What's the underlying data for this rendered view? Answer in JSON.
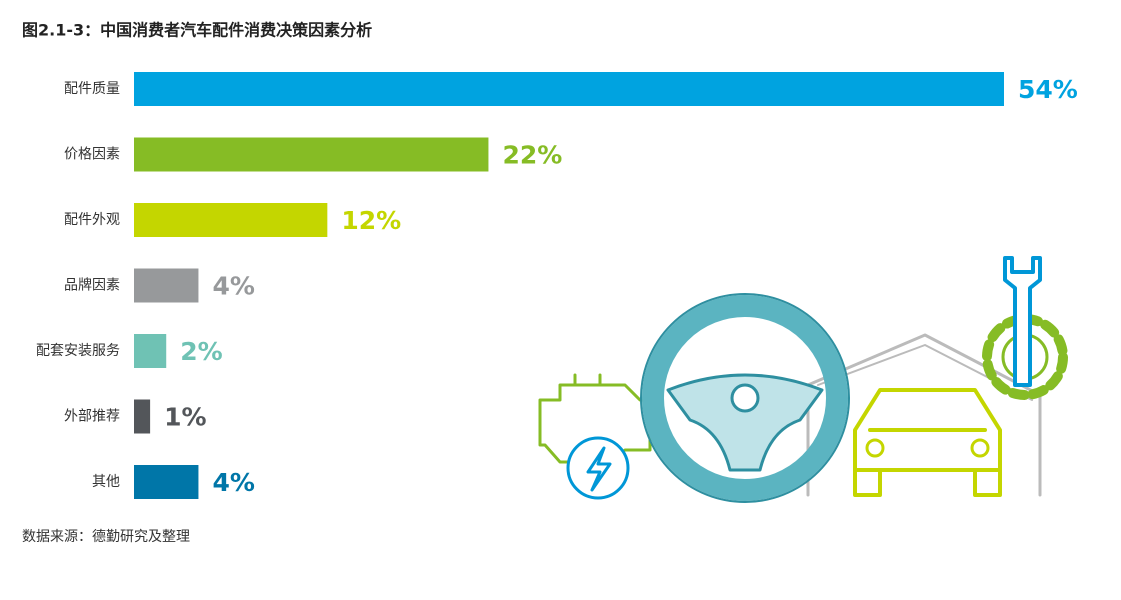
{
  "chart_data": {
    "type": "bar",
    "orientation": "horizontal",
    "title": "图2.1-3：中国消费者汽车配件消费决策因素分析",
    "categories": [
      "配件质量",
      "价格因素",
      "配件外观",
      "品牌因素",
      "配套安装服务",
      "外部推荐",
      "其他"
    ],
    "values": [
      54,
      22,
      12,
      4,
      2,
      1,
      4
    ],
    "value_labels": [
      "54%",
      "22%",
      "12%",
      "4%",
      "2%",
      "1%",
      "4%"
    ],
    "colors": [
      "#00a3e0",
      "#86bc25",
      "#c4d600",
      "#97999b",
      "#6fc2b4",
      "#53565a",
      "#0076a8"
    ],
    "source": "数据来源：德勤研究及整理"
  }
}
